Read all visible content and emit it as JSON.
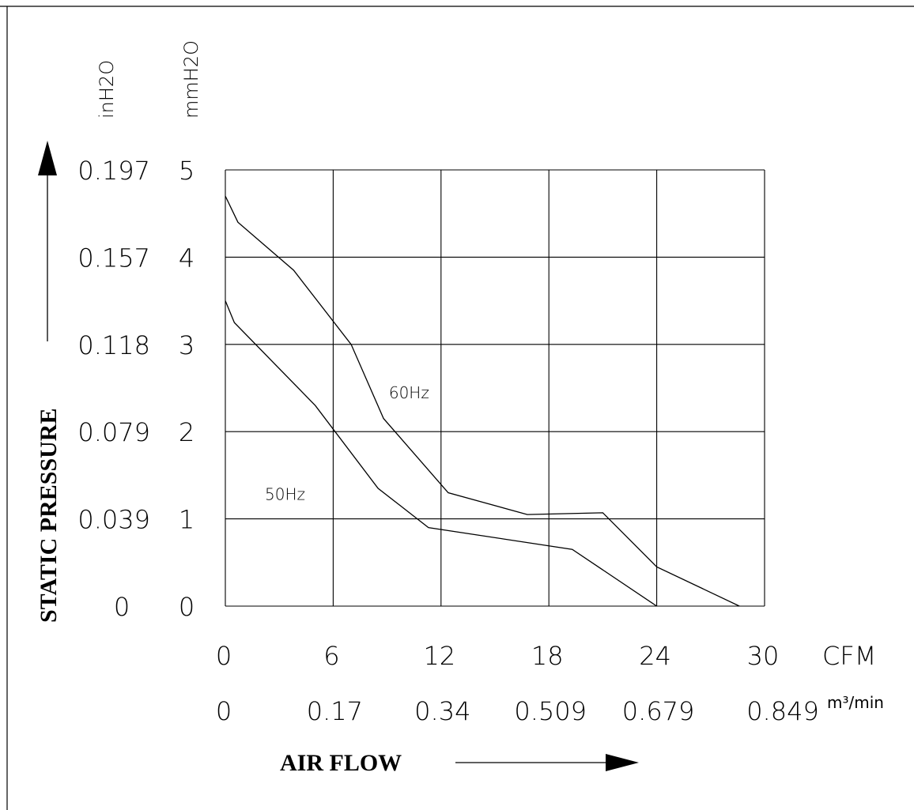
{
  "chart_data": {
    "type": "line",
    "ylabel": "STATIC PRESSURE",
    "xlabel": "AIR FLOW",
    "x_unit_primary": "CFM",
    "x_unit_secondary": "m³/min",
    "y_unit_primary": "mmH2O",
    "y_unit_secondary": "inH2O",
    "xlim": [
      0,
      30
    ],
    "ylim": [
      0,
      5
    ],
    "grid": true,
    "x_ticks": [
      "0",
      "6",
      "12",
      "18",
      "24",
      "30"
    ],
    "x_ticks_secondary": [
      "0",
      "0.17",
      "0.34",
      "0.509",
      "0.679",
      "0.849"
    ],
    "y_ticks": [
      "0",
      "1",
      "2",
      "3",
      "4",
      "5"
    ],
    "y_ticks_secondary": [
      "0",
      "0.039",
      "0.079",
      "0.118",
      "0.157",
      "0.197"
    ],
    "series": [
      {
        "name": "60Hz",
        "x": [
          0,
          0.7,
          3.8,
          7,
          8.8,
          12.4,
          16.8,
          21,
          24,
          28.6
        ],
        "y": [
          4.7,
          4.4,
          3.85,
          3.0,
          2.15,
          1.3,
          1.05,
          1.07,
          0.45,
          0.0
        ]
      },
      {
        "name": "50Hz",
        "x": [
          0,
          0.5,
          5,
          8.5,
          11.3,
          19.3,
          24
        ],
        "y": [
          3.5,
          3.25,
          2.3,
          1.35,
          0.9,
          0.65,
          0.0
        ]
      }
    ],
    "annotations": [
      {
        "text": "60Hz",
        "x": 9.1,
        "y": 2.38
      },
      {
        "text": "50Hz",
        "x": 2.2,
        "y": 1.22
      }
    ]
  }
}
